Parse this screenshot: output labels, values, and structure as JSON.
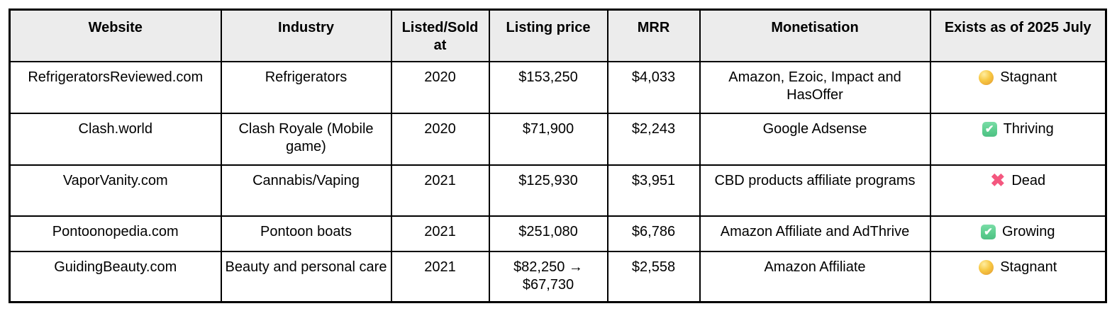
{
  "table": {
    "columns": [
      {
        "key": "website",
        "label": "Website"
      },
      {
        "key": "industry",
        "label": "Industry"
      },
      {
        "key": "listed_sold_at",
        "label": "Listed/Sold at"
      },
      {
        "key": "listing_price",
        "label": "Listing price"
      },
      {
        "key": "mrr",
        "label": "MRR"
      },
      {
        "key": "monetisation",
        "label": "Monetisation"
      },
      {
        "key": "exists",
        "label": "Exists as of 2025 July"
      }
    ],
    "rows": [
      {
        "website": "RefrigeratorsReviewed.com",
        "industry": "Refrigerators",
        "listed_sold_at": "2020",
        "listing_price": "$153,250",
        "mrr": "$4,033",
        "monetisation": "Amazon, Ezoic, Impact and HasOffer",
        "status": {
          "icon": "yellow-circle",
          "label": "Stagnant"
        }
      },
      {
        "website": "Clash.world",
        "industry": "Clash Royale (Mobile game)",
        "listed_sold_at": "2020",
        "listing_price": "$71,900",
        "mrr": "$2,243",
        "monetisation": "Google Adsense",
        "status": {
          "icon": "green-check",
          "label": "Thriving"
        }
      },
      {
        "website": "VaporVanity.com",
        "industry": "Cannabis/Vaping",
        "listed_sold_at": "2021",
        "listing_price": "$125,930",
        "mrr": "$3,951",
        "monetisation": "CBD products affiliate programs",
        "status": {
          "icon": "red-cross",
          "label": "Dead"
        }
      },
      {
        "website": "Pontoonopedia.com",
        "industry": "Pontoon boats",
        "listed_sold_at": "2021",
        "listing_price": "$251,080",
        "mrr": "$6,786",
        "monetisation": "Amazon Affiliate and AdThrive",
        "status": {
          "icon": "green-check",
          "label": "Growing"
        }
      },
      {
        "website": "GuidingBeauty.com",
        "industry": "Beauty and personal care",
        "listed_sold_at": "2021",
        "listing_price": "$82,250 → $67,730",
        "mrr": "$2,558",
        "monetisation": "Amazon Affiliate",
        "status": {
          "icon": "yellow-circle",
          "label": "Stagnant"
        }
      }
    ]
  },
  "colors": {
    "header_bg": "#ececec",
    "border": "#000000",
    "stagnant": "#f7c843",
    "thriving": "#5bcd8e",
    "dead": "#f4577f"
  }
}
